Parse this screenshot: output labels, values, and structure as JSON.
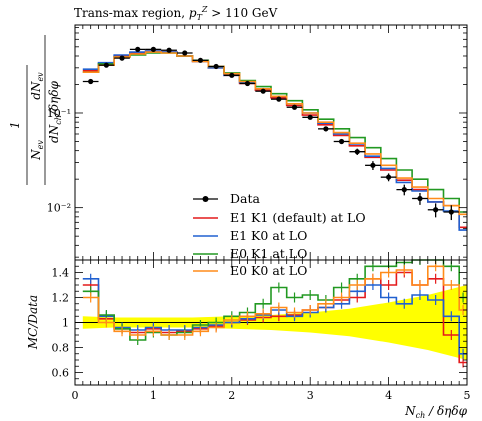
{
  "chart_data": [
    {
      "type": "line",
      "panel": "main",
      "title": "Trans-max region, p_T^Z > 110 GeV",
      "xlabel": "N_ch / δη δφ",
      "ylabel": "1/N_ev dN_ev / dN_ch/δηδφ",
      "yscale": "log",
      "xlim": [
        0,
        5
      ],
      "ylim": [
        0.0028,
        0.85
      ],
      "yticks": [
        {
          "value": 0.01,
          "label": "10⁻²"
        },
        {
          "value": 0.1,
          "label": "10⁻¹"
        }
      ],
      "legend_position": "center-right",
      "bin_edges": [
        0.1,
        0.3,
        0.5,
        0.7,
        0.9,
        1.1,
        1.3,
        1.5,
        1.7,
        1.9,
        2.1,
        2.3,
        2.5,
        2.7,
        2.9,
        3.1,
        3.3,
        3.5,
        3.7,
        3.9,
        4.1,
        4.3,
        4.5,
        4.7,
        4.9,
        5.0
      ],
      "data": {
        "name": "Data",
        "x": [
          0.2,
          0.4,
          0.6,
          0.8,
          1.0,
          1.2,
          1.4,
          1.6,
          1.8,
          2.0,
          2.2,
          2.4,
          2.6,
          2.8,
          3.0,
          3.2,
          3.4,
          3.6,
          3.8,
          4.0,
          4.2,
          4.4,
          4.6,
          4.8
        ],
        "y": [
          0.215,
          0.32,
          0.38,
          0.47,
          0.47,
          0.46,
          0.43,
          0.36,
          0.31,
          0.25,
          0.205,
          0.17,
          0.14,
          0.115,
          0.09,
          0.068,
          0.05,
          0.039,
          0.028,
          0.021,
          0.0155,
          0.0125,
          0.0095,
          0.009
        ],
        "yerr": [
          0.012,
          0.015,
          0.015,
          0.015,
          0.015,
          0.014,
          0.013,
          0.011,
          0.01,
          0.008,
          0.007,
          0.006,
          0.005,
          0.005,
          0.004,
          0.004,
          0.003,
          0.003,
          0.003,
          0.002,
          0.002,
          0.0018,
          0.0016,
          0.0016
        ]
      },
      "series": [
        {
          "name": "E1 K1 (default) at LO",
          "color": "#e41a1c",
          "values": [
            0.28,
            0.33,
            0.4,
            0.43,
            0.45,
            0.44,
            0.4,
            0.35,
            0.3,
            0.25,
            0.205,
            0.175,
            0.145,
            0.12,
            0.095,
            0.075,
            0.058,
            0.045,
            0.034,
            0.025,
            0.0195,
            0.0155,
            0.0115,
            0.0105,
            0.0062
          ]
        },
        {
          "name": "E1 K0 at LO",
          "color": "#2060d0",
          "values": [
            0.29,
            0.34,
            0.41,
            0.44,
            0.45,
            0.44,
            0.4,
            0.35,
            0.3,
            0.25,
            0.21,
            0.18,
            0.15,
            0.125,
            0.1,
            0.078,
            0.06,
            0.047,
            0.035,
            0.026,
            0.0185,
            0.015,
            0.0115,
            0.0092,
            0.0058
          ]
        },
        {
          "name": "E0 K1 at LO",
          "color": "#229922",
          "values": [
            0.27,
            0.33,
            0.39,
            0.41,
            0.43,
            0.43,
            0.4,
            0.36,
            0.31,
            0.265,
            0.22,
            0.19,
            0.16,
            0.135,
            0.108,
            0.086,
            0.068,
            0.055,
            0.043,
            0.033,
            0.025,
            0.02,
            0.0155,
            0.0125,
            0.009
          ]
        },
        {
          "name": "E0 K0 at LO",
          "color": "#ff8c1a",
          "values": [
            0.27,
            0.32,
            0.39,
            0.42,
            0.44,
            0.43,
            0.4,
            0.35,
            0.31,
            0.26,
            0.215,
            0.18,
            0.15,
            0.125,
            0.1,
            0.08,
            0.062,
            0.048,
            0.037,
            0.028,
            0.0205,
            0.0165,
            0.0125,
            0.0105,
            0.0085
          ]
        }
      ]
    },
    {
      "type": "line",
      "panel": "ratio",
      "xlabel": "N_ch / δη δφ",
      "ylabel": "MC/Data",
      "xlim": [
        0,
        5
      ],
      "ylim": [
        0.5,
        1.5
      ],
      "xticks": [
        0,
        1,
        2,
        3,
        4,
        5
      ],
      "yticks": [
        0.6,
        0.8,
        1,
        1.2,
        1.4
      ],
      "reference_line": 1,
      "band": {
        "color": "#ffff00",
        "x": [
          0.1,
          0.5,
          1.0,
          1.5,
          2.0,
          2.5,
          3.0,
          3.5,
          4.0,
          4.5,
          5.0
        ],
        "upper": [
          1.05,
          1.04,
          1.04,
          1.04,
          1.05,
          1.06,
          1.08,
          1.11,
          1.16,
          1.22,
          1.3
        ],
        "lower": [
          0.95,
          0.96,
          0.96,
          0.96,
          0.95,
          0.94,
          0.92,
          0.89,
          0.84,
          0.78,
          0.7
        ]
      },
      "series": [
        {
          "name": "E1 K1 (default) at LO",
          "color": "#e41a1c",
          "values": [
            1.3,
            1.03,
            0.95,
            0.92,
            0.95,
            0.92,
            0.93,
            0.95,
            0.97,
            1.0,
            1.02,
            1.04,
            1.05,
            1.06,
            1.1,
            1.12,
            1.18,
            1.2,
            1.35,
            1.3,
            1.4,
            1.3,
            1.35,
            0.9,
            0.68
          ]
        },
        {
          "name": "E1 K0 at LO",
          "color": "#2060d0",
          "values": [
            1.35,
            1.05,
            0.96,
            0.94,
            0.96,
            0.94,
            0.94,
            0.96,
            0.98,
            1.0,
            1.03,
            1.06,
            1.1,
            1.05,
            1.08,
            1.12,
            1.15,
            1.25,
            1.3,
            1.2,
            1.15,
            1.22,
            1.18,
            1.05,
            0.75
          ]
        },
        {
          "name": "E0 K1 at LO",
          "color": "#229922",
          "values": [
            1.25,
            1.06,
            0.95,
            0.86,
            0.92,
            0.9,
            0.92,
            0.98,
            1.0,
            1.05,
            1.08,
            1.15,
            1.28,
            1.2,
            1.22,
            1.18,
            1.28,
            1.35,
            1.45,
            1.45,
            1.48,
            1.5,
            1.5,
            1.45,
            1.2
          ]
        },
        {
          "name": "E0 K0 at LO",
          "color": "#ff8c1a",
          "values": [
            1.2,
            1.0,
            0.93,
            0.9,
            0.93,
            0.9,
            0.9,
            0.93,
            0.96,
            1.02,
            1.05,
            1.07,
            1.12,
            1.08,
            1.1,
            1.15,
            1.2,
            1.3,
            1.35,
            1.4,
            1.42,
            1.3,
            1.45,
            1.3,
            1.1
          ]
        }
      ]
    }
  ]
}
